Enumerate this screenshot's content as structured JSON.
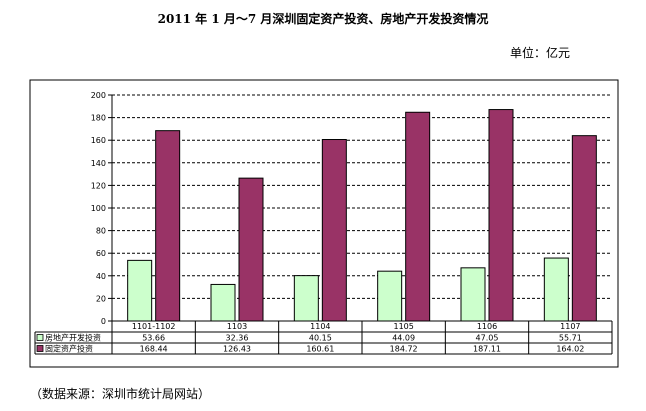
{
  "title": "2011 年 1 月～7 月深圳固定资产投资、房地产开发投资情况",
  "unit": "单位：亿元",
  "source": "（数据来源：深圳市统计局网站）",
  "colors": {
    "series1": "#ccffcc",
    "series2": "#993366"
  },
  "chart_data": {
    "type": "bar",
    "categories": [
      "1101-1102",
      "1103",
      "1104",
      "1105",
      "1106",
      "1107"
    ],
    "series": [
      {
        "name": "房地产开发投资",
        "values": [
          53.66,
          32.36,
          40.15,
          44.09,
          47.05,
          55.71
        ],
        "labels": [
          "53.66",
          "32.36",
          "40.15",
          "44.09",
          "47.05",
          "55.71"
        ]
      },
      {
        "name": "固定资产投资",
        "values": [
          168.44,
          126.43,
          160.61,
          184.72,
          187.11,
          164.02
        ],
        "labels": [
          "168.44",
          "126.43",
          "160.61",
          "184.72",
          "187.11",
          "164.02"
        ]
      }
    ],
    "ylim": [
      0,
      200
    ],
    "yticks": [
      "0",
      "20",
      "40",
      "60",
      "80",
      "100",
      "120",
      "140",
      "160",
      "180",
      "200"
    ],
    "grid": true
  }
}
